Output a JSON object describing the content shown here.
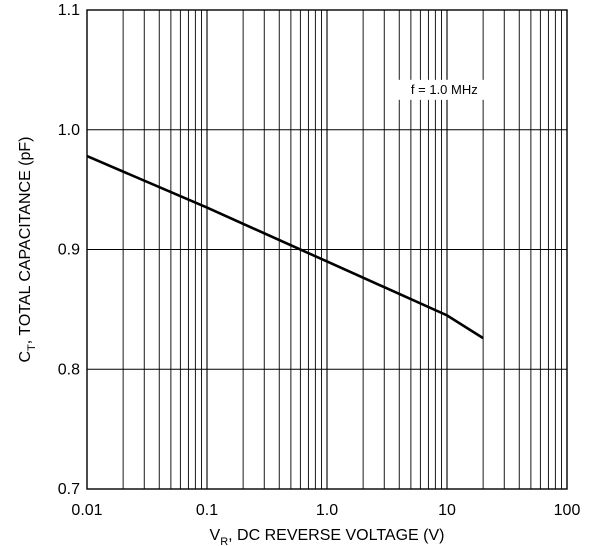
{
  "chart_data": {
    "type": "line",
    "xscale": "log",
    "xlim": [
      0.01,
      100
    ],
    "ylim": [
      0.7,
      1.1
    ],
    "grid": true,
    "x_ticks": [
      {
        "value": 0.01,
        "label": "0.01"
      },
      {
        "value": 0.1,
        "label": "0.1"
      },
      {
        "value": 1,
        "label": "1.0"
      },
      {
        "value": 10,
        "label": "10"
      },
      {
        "value": 100,
        "label": "100"
      }
    ],
    "y_ticks": [
      {
        "value": 0.7,
        "label": "0.7"
      },
      {
        "value": 0.8,
        "label": "0.8"
      },
      {
        "value": 0.9,
        "label": "0.9"
      },
      {
        "value": 1.0,
        "label": "1.0"
      },
      {
        "value": 1.1,
        "label": "1.1"
      }
    ],
    "ylabel": {
      "main": "C",
      "sub": "T",
      "rest": ", TOTAL CAPACITANCE (pF)"
    },
    "xlabel": {
      "main": "V",
      "sub": "R",
      "rest": ", DC REVERSE VOLTAGE (V)"
    },
    "annotation": "f = 1.0 MHz",
    "series": [
      {
        "x": [
          0.01,
          0.1,
          1.0,
          10,
          20
        ],
        "y": [
          0.978,
          0.935,
          0.89,
          0.845,
          0.826
        ]
      }
    ],
    "colors": {
      "line": "#000000",
      "grid": "#000000"
    }
  }
}
